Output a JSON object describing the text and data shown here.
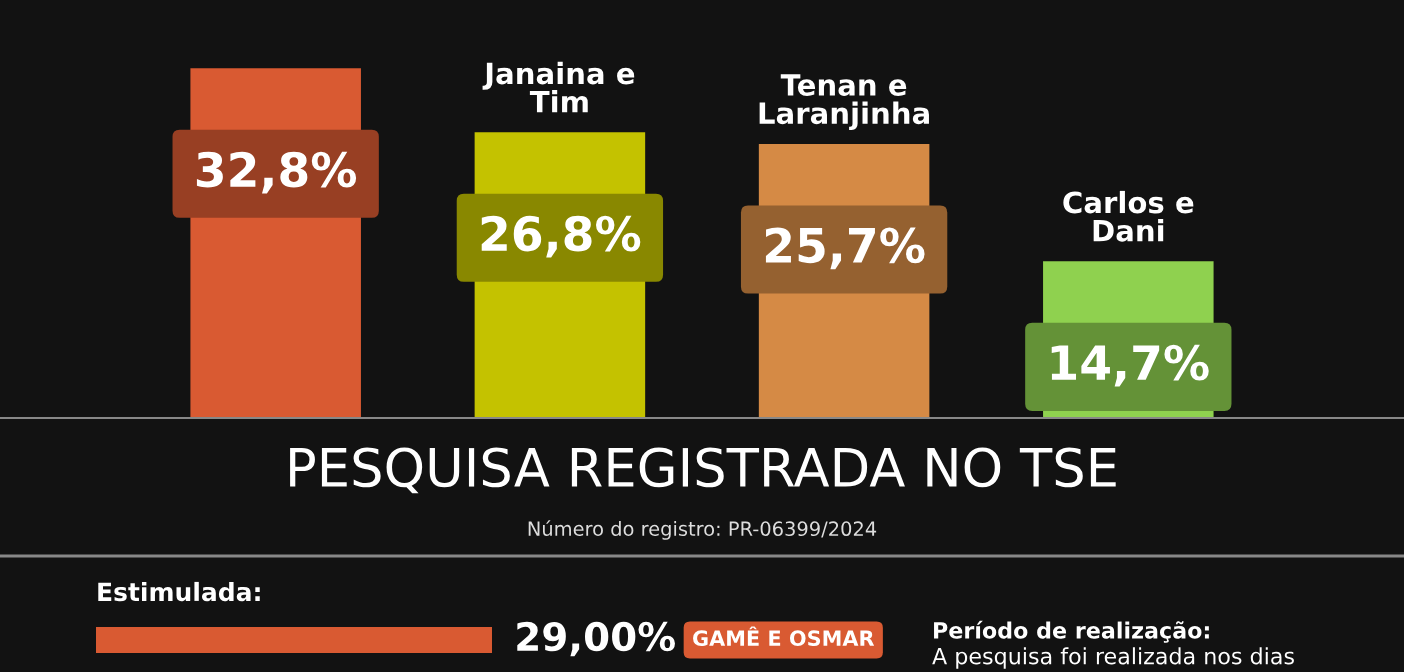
{
  "chart_data": [
    {
      "type": "bar",
      "categories": [
        null,
        "Janaina e Tim",
        "Tenan e Laranjinha",
        "Carlos e Dani"
      ],
      "values": [
        32.8,
        26.8,
        25.7,
        14.7
      ],
      "colors": [
        "#d95a32",
        "#c4c200",
        "#d58a45",
        "#8fd14f"
      ],
      "value_labels": [
        "32,8%",
        "26,8%",
        "25,7%",
        "14,7%"
      ]
    },
    {
      "type": "bar",
      "orientation": "horizontal",
      "title": "PESQUISA REGISTRADA NO TSE",
      "subtitle": "Número do registro: PR-06399/2024",
      "categories": [
        "GAMÊ E OSMAR"
      ],
      "values": [
        29.0
      ],
      "colors": [
        "#d95a32"
      ],
      "value_labels": [
        "29,00%"
      ],
      "annotations": [
        "Estimulada:",
        "Período de realização:",
        "A pesquisa foi realizada nos dias"
      ]
    }
  ]
}
